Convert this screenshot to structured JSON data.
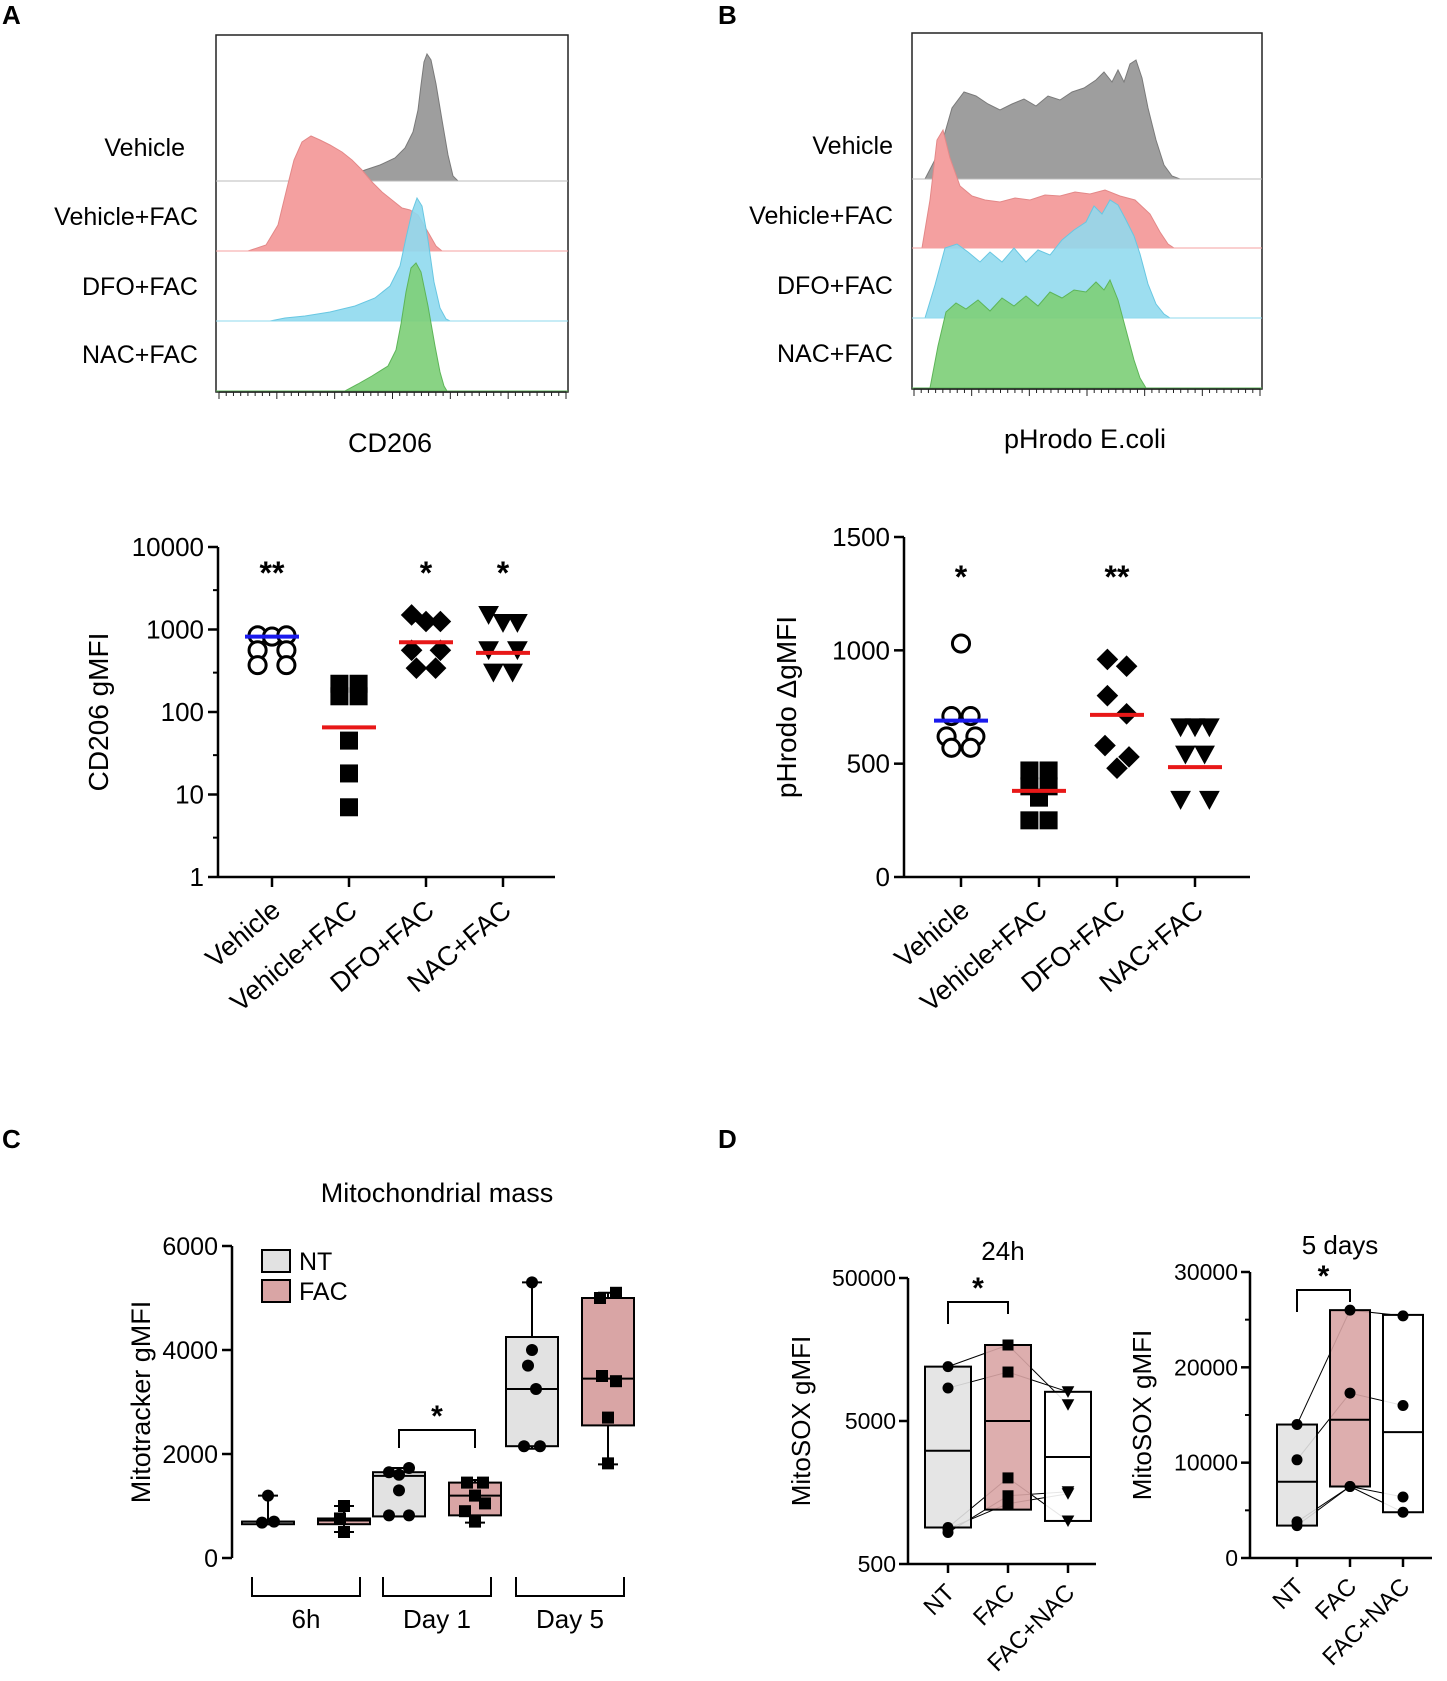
{
  "panels": {
    "A": "A",
    "B": "B",
    "C": "C",
    "D": "D"
  },
  "colors": {
    "vehicle": "#9e9e9e",
    "vehicle_fac": "#f4a0a0",
    "dfo_fac": "#8fd9ee",
    "nac_fac": "#7fcf7a",
    "mean_blue": "#1a1aee",
    "mean_red": "#e81818",
    "nt_box": "#e2e2e2",
    "fac_box": "#d9a5a5",
    "facnac_box": "#ffffff"
  },
  "chart_data": [
    {
      "id": "A_hist",
      "type": "histogram",
      "xlabel": "CD206",
      "rows": [
        "Vehicle",
        "Vehicle+FAC",
        "DFO+FAC",
        "NAC+FAC"
      ]
    },
    {
      "id": "B_hist",
      "type": "histogram",
      "xlabel": "pHrodo E.coli",
      "rows": [
        "Vehicle",
        "Vehicle+FAC",
        "DFO+FAC",
        "NAC+FAC"
      ]
    },
    {
      "id": "A_scatter",
      "type": "scatter",
      "scale": "log",
      "ylabel": "CD206 gMFI",
      "ylim": [
        1,
        10000
      ],
      "yticks": [
        1,
        10,
        100,
        1000,
        10000
      ],
      "ytick_labels": [
        "1",
        "10",
        "100",
        "1000",
        "10000"
      ],
      "categories": [
        "Vehicle",
        "Vehicle+FAC",
        "DFO+FAC",
        "NAC+FAC"
      ],
      "markers": [
        "circle-open",
        "square",
        "diamond",
        "triangle-down"
      ],
      "mean_colors": [
        "mean_blue",
        "mean_red",
        "mean_red",
        "mean_red"
      ],
      "significance": [
        "**",
        "",
        "*",
        "*"
      ],
      "means": [
        820,
        65,
        700,
        520
      ],
      "points": [
        [
          [
            -0.3,
            850
          ],
          [
            0.0,
            820
          ],
          [
            0.3,
            850
          ],
          [
            -0.3,
            560
          ],
          [
            0.3,
            560
          ],
          [
            -0.3,
            370
          ],
          [
            0.3,
            370
          ]
        ],
        [
          [
            -0.2,
            220
          ],
          [
            0.2,
            220
          ],
          [
            -0.2,
            155
          ],
          [
            0.2,
            155
          ],
          [
            0.0,
            45
          ],
          [
            0.0,
            18
          ],
          [
            0.0,
            7
          ]
        ],
        [
          [
            -0.3,
            1500
          ],
          [
            0.0,
            1250
          ],
          [
            0.3,
            1250
          ],
          [
            -0.3,
            560
          ],
          [
            0.3,
            560
          ],
          [
            -0.2,
            340
          ],
          [
            0.2,
            340
          ]
        ],
        [
          [
            -0.3,
            1500
          ],
          [
            0.0,
            1200
          ],
          [
            0.3,
            1200
          ],
          [
            -0.3,
            560
          ],
          [
            0.3,
            560
          ],
          [
            -0.2,
            300
          ],
          [
            0.2,
            300
          ]
        ]
      ]
    },
    {
      "id": "B_scatter",
      "type": "scatter",
      "scale": "linear",
      "ylabel": "pHrodo ΔgMFI",
      "ylim": [
        0,
        1500
      ],
      "yticks": [
        0,
        500,
        1000,
        1500
      ],
      "ytick_labels": [
        "0",
        "500",
        "1000",
        "1500"
      ],
      "categories": [
        "Vehicle",
        "Vehicle+FAC",
        "DFO+FAC",
        "NAC+FAC"
      ],
      "markers": [
        "circle-open",
        "square",
        "diamond",
        "triangle-down"
      ],
      "mean_colors": [
        "mean_blue",
        "mean_red",
        "mean_red",
        "mean_red"
      ],
      "significance": [
        "*",
        "",
        "**",
        ""
      ],
      "means": [
        690,
        380,
        715,
        485
      ],
      "points": [
        [
          [
            0.0,
            1030
          ],
          [
            -0.2,
            710
          ],
          [
            0.2,
            710
          ],
          [
            -0.3,
            620
          ],
          [
            0.3,
            620
          ],
          [
            -0.2,
            570
          ],
          [
            0.2,
            570
          ]
        ],
        [
          [
            -0.2,
            470
          ],
          [
            0.2,
            470
          ],
          [
            -0.2,
            400
          ],
          [
            0.2,
            400
          ],
          [
            0.0,
            350
          ],
          [
            -0.2,
            250
          ],
          [
            0.2,
            250
          ]
        ],
        [
          [
            -0.2,
            960
          ],
          [
            0.2,
            930
          ],
          [
            -0.2,
            800
          ],
          [
            0.2,
            720
          ],
          [
            -0.25,
            580
          ],
          [
            0.25,
            530
          ],
          [
            0.0,
            480
          ]
        ],
        [
          [
            -0.3,
            660
          ],
          [
            0.0,
            660
          ],
          [
            0.3,
            660
          ],
          [
            -0.2,
            540
          ],
          [
            0.2,
            540
          ],
          [
            -0.3,
            340
          ],
          [
            0.3,
            340
          ]
        ]
      ]
    },
    {
      "id": "C_box",
      "type": "box",
      "title": "Mitochondrial mass",
      "ylabel": "Mitotracker gMFI",
      "ylim": [
        0,
        6000
      ],
      "yticks": [
        0,
        2000,
        4000,
        6000
      ],
      "ytick_labels": [
        "0",
        "2000",
        "4000",
        "6000"
      ],
      "legend": [
        "NT",
        "FAC"
      ],
      "groups": [
        "6h",
        "Day 1",
        "Day 5"
      ],
      "significance": [
        {
          "group": 1,
          "label": "*"
        }
      ],
      "series": [
        {
          "name": "NT",
          "boxes": [
            {
              "min": 650,
              "q1": 650,
              "med": 700,
              "q3": 700,
              "max": 1200
            },
            {
              "min": 800,
              "q1": 800,
              "med": 1580,
              "q3": 1650,
              "max": 1730
            },
            {
              "min": 2100,
              "q1": 2150,
              "med": 3250,
              "q3": 4250,
              "max": 5300
            }
          ],
          "points": [
            [
              [
                0.0,
                1200
              ],
              [
                -0.15,
                680
              ],
              [
                0.15,
                700
              ]
            ],
            [
              [
                -0.25,
                1650
              ],
              [
                0.25,
                1730
              ],
              [
                0.0,
                1600
              ],
              [
                -0.25,
                820
              ],
              [
                0.25,
                820
              ],
              [
                0.0,
                1300
              ]
            ],
            [
              [
                0.0,
                5300
              ],
              [
                0.0,
                4000
              ],
              [
                -0.1,
                3700
              ],
              [
                0.1,
                3250
              ],
              [
                -0.2,
                2150
              ],
              [
                0.2,
                2150
              ]
            ]
          ]
        },
        {
          "name": "FAC",
          "boxes": [
            {
              "min": 500,
              "q1": 650,
              "med": 720,
              "q3": 760,
              "max": 1000
            },
            {
              "min": 680,
              "q1": 820,
              "med": 1200,
              "q3": 1450,
              "max": 1500
            },
            {
              "min": 1800,
              "q1": 2550,
              "med": 3450,
              "q3": 5000,
              "max": 5100
            }
          ],
          "points": [
            [
              [
                0.0,
                1000
              ],
              [
                -0.1,
                760
              ],
              [
                0.0,
                500
              ]
            ],
            [
              [
                -0.2,
                1450
              ],
              [
                0.2,
                1450
              ],
              [
                0.0,
                1200
              ],
              [
                -0.25,
                900
              ],
              [
                0.25,
                1050
              ],
              [
                0.0,
                700
              ]
            ],
            [
              [
                -0.2,
                5000
              ],
              [
                0.2,
                5100
              ],
              [
                -0.15,
                3500
              ],
              [
                0.2,
                3400
              ],
              [
                0.0,
                2700
              ],
              [
                0.0,
                1820
              ]
            ]
          ]
        }
      ]
    },
    {
      "id": "D_24h",
      "type": "box",
      "title": "24h",
      "scale": "log",
      "ylabel": "MitoSOX gMFI",
      "ylim": [
        500,
        50000
      ],
      "yticks": [
        500,
        5000,
        50000
      ],
      "ytick_labels": [
        "500",
        "5000",
        "50000"
      ],
      "categories": [
        "NT",
        "FAC",
        "FAC+NAC"
      ],
      "significance": [
        {
          "from": 0,
          "to": 1,
          "label": "*"
        }
      ],
      "boxes": [
        {
          "min": 850,
          "q1": 900,
          "med": 3100,
          "q3": 12000,
          "max": 12000
        },
        {
          "min": 1200,
          "q1": 1200,
          "med": 5000,
          "q3": 17000,
          "max": 17000
        },
        {
          "min": 1000,
          "q1": 1000,
          "med": 2800,
          "q3": 8000,
          "max": 8000
        }
      ],
      "markers": [
        "circle",
        "square",
        "triangle-down"
      ],
      "points": [
        [
          8500,
          12000,
          880,
          830,
          900
        ],
        [
          11000,
          17000,
          1320,
          1500,
          2000
        ],
        [
          8000,
          6500,
          1550,
          1600,
          1000
        ]
      ]
    },
    {
      "id": "D_5d",
      "type": "box",
      "title": "5 days",
      "scale": "linear",
      "ylabel": "MitoSOX gMFI",
      "ylim": [
        0,
        30000
      ],
      "yticks": [
        0,
        10000,
        20000,
        30000
      ],
      "ytick_labels": [
        "0",
        "10000",
        "20000",
        "30000"
      ],
      "categories": [
        "NT",
        "FAC",
        "FAC+NAC"
      ],
      "significance": [
        {
          "from": 0,
          "to": 1,
          "label": "*"
        }
      ],
      "boxes": [
        {
          "min": 3400,
          "q1": 3400,
          "med": 8000,
          "q3": 14000,
          "max": 14000
        },
        {
          "min": 7500,
          "q1": 7500,
          "med": 14500,
          "q3": 26000,
          "max": 26000
        },
        {
          "min": 4800,
          "q1": 4800,
          "med": 13200,
          "q3": 25500,
          "max": 25500
        }
      ],
      "markers": [
        "circle",
        "circle",
        "circle"
      ],
      "points": [
        [
          14000,
          10300,
          3800,
          3400
        ],
        [
          26000,
          17300,
          7500,
          7500
        ],
        [
          25400,
          16000,
          6400,
          4800
        ]
      ]
    }
  ]
}
